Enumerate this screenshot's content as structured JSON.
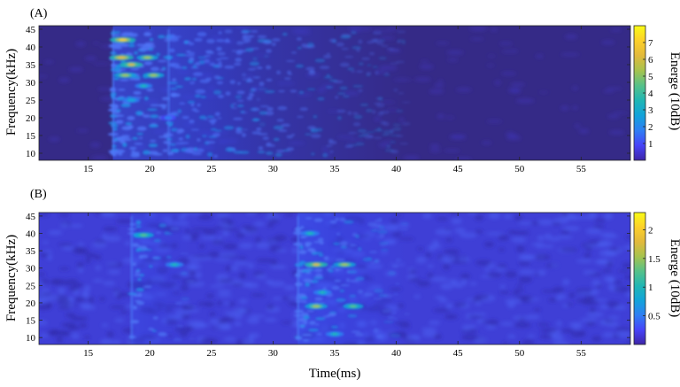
{
  "chart_data": [
    {
      "type": "heatmap",
      "panel_label": "(A)",
      "xlabel": "",
      "ylabel": "Frequency(kHz)",
      "xlim": [
        11,
        59
      ],
      "ylim": [
        8,
        46
      ],
      "xticks": [
        15,
        20,
        25,
        30,
        35,
        40,
        45,
        50,
        55
      ],
      "yticks": [
        10,
        15,
        20,
        25,
        30,
        35,
        40,
        45
      ],
      "colorbar": {
        "label": "Energe (10dB)",
        "range": [
          0,
          8
        ],
        "ticks": [
          1,
          2,
          3,
          4,
          5,
          6,
          7
        ],
        "tick_labels": [
          "1",
          "2",
          "3",
          "4",
          "5",
          "6",
          "7"
        ]
      },
      "colormap": [
        "#3e26a8",
        "#4743f8",
        "#2f7ef3",
        "#12a3da",
        "#20b6b4",
        "#56c189",
        "#a6c34e",
        "#e2b93c",
        "#fdd02a",
        "#f9fb15"
      ],
      "background_color": "#352a87",
      "events": [
        {
          "onset_ms": 17.0,
          "level": 0.62,
          "duration_ms": 24
        },
        {
          "onset_ms": 21.5,
          "level": 0.22,
          "duration_ms": 8
        }
      ],
      "hotspots": [
        {
          "time_ms": 17.8,
          "freq_khz": 42,
          "energy": 7.2
        },
        {
          "time_ms": 17.7,
          "freq_khz": 37,
          "energy": 6.4
        },
        {
          "time_ms": 19.8,
          "freq_khz": 37,
          "energy": 5.2
        },
        {
          "time_ms": 18.5,
          "freq_khz": 35,
          "energy": 5.8
        },
        {
          "time_ms": 18.0,
          "freq_khz": 32,
          "energy": 5.6
        },
        {
          "time_ms": 20.3,
          "freq_khz": 32,
          "energy": 5.0
        },
        {
          "time_ms": 19.5,
          "freq_khz": 29,
          "energy": 3.2
        },
        {
          "time_ms": 18.5,
          "freq_khz": 25,
          "energy": 2.8
        },
        {
          "time_ms": 21.5,
          "freq_khz": 20,
          "energy": 2.0
        }
      ]
    },
    {
      "type": "heatmap",
      "panel_label": "(B)",
      "xlabel": "Time(ms)",
      "ylabel": "Frequency(kHz)",
      "xlim": [
        11,
        59
      ],
      "ylim": [
        8,
        46
      ],
      "xticks": [
        15,
        20,
        25,
        30,
        35,
        40,
        45,
        50,
        55
      ],
      "yticks": [
        10,
        15,
        20,
        25,
        30,
        35,
        40,
        45
      ],
      "colorbar": {
        "label": "Energe (10dB)",
        "range": [
          0,
          2.3
        ],
        "ticks": [
          0.5,
          1,
          1.5,
          2
        ],
        "tick_labels": [
          "0.5",
          "1",
          "1.5",
          "2"
        ]
      },
      "colormap": [
        "#3e26a8",
        "#4743f8",
        "#2f7ef3",
        "#12a3da",
        "#20b6b4",
        "#56c189",
        "#a6c34e",
        "#e2b93c",
        "#fdd02a",
        "#f9fb15"
      ],
      "background_color": "#3f3fd6",
      "events": [
        {
          "onset_ms": 18.5,
          "level": 0.35,
          "duration_ms": 5
        },
        {
          "onset_ms": 32.0,
          "level": 0.55,
          "duration_ms": 9
        }
      ],
      "hotspots": [
        {
          "time_ms": 19.5,
          "freq_khz": 39.5,
          "energy": 1.3
        },
        {
          "time_ms": 22.0,
          "freq_khz": 31,
          "energy": 1.0
        },
        {
          "time_ms": 33.5,
          "freq_khz": 31,
          "energy": 1.7
        },
        {
          "time_ms": 35.8,
          "freq_khz": 31,
          "energy": 1.6
        },
        {
          "time_ms": 33.5,
          "freq_khz": 19,
          "energy": 1.6
        },
        {
          "time_ms": 36.5,
          "freq_khz": 19,
          "energy": 1.3
        },
        {
          "time_ms": 33.0,
          "freq_khz": 40,
          "energy": 1.1
        },
        {
          "time_ms": 34.0,
          "freq_khz": 23,
          "energy": 1.0
        },
        {
          "time_ms": 35.0,
          "freq_khz": 11,
          "energy": 1.0
        }
      ]
    }
  ]
}
